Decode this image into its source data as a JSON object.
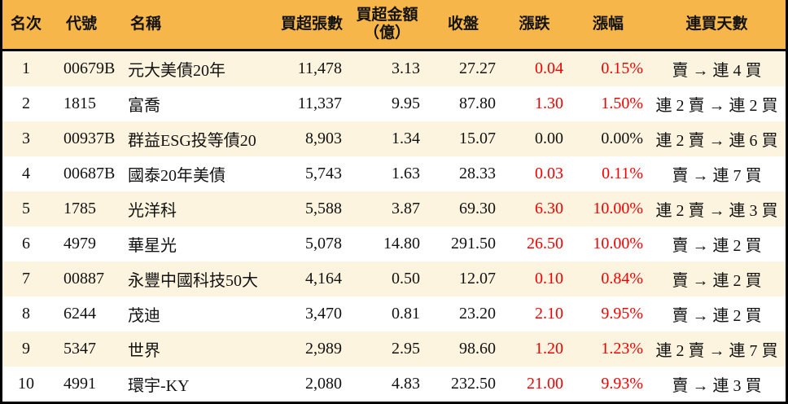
{
  "chart_data": {
    "type": "table",
    "header": {
      "rank": "名次",
      "code": "代號",
      "name": "名稱",
      "volume": "買超張數",
      "amount_line1": "買超金額",
      "amount_line2": "（億）",
      "close": "收盤",
      "change": "漲跌",
      "pct": "漲幅",
      "days": "連買天數"
    },
    "rows": [
      {
        "rank": "1",
        "code": "00679B",
        "name": "元大美債20年",
        "volume": "11,478",
        "amount": "3.13",
        "close": "27.27",
        "change": "0.04",
        "pct": "0.15%",
        "days": "賣 → 連 4 買",
        "direction": "up"
      },
      {
        "rank": "2",
        "code": "1815",
        "name": "富喬",
        "volume": "11,337",
        "amount": "9.95",
        "close": "87.80",
        "change": "1.30",
        "pct": "1.50%",
        "days": "連 2 賣 → 連 2 買",
        "direction": "up"
      },
      {
        "rank": "3",
        "code": "00937B",
        "name": "群益ESG投等債20",
        "volume": "8,903",
        "amount": "1.34",
        "close": "15.07",
        "change": "0.00",
        "pct": "0.00%",
        "days": "連 2 賣 → 連 6 買",
        "direction": "flat"
      },
      {
        "rank": "4",
        "code": "00687B",
        "name": "國泰20年美債",
        "volume": "5,743",
        "amount": "1.63",
        "close": "28.33",
        "change": "0.03",
        "pct": "0.11%",
        "days": "賣 → 連 7 買",
        "direction": "up"
      },
      {
        "rank": "5",
        "code": "1785",
        "name": "光洋科",
        "volume": "5,588",
        "amount": "3.87",
        "close": "69.30",
        "change": "6.30",
        "pct": "10.00%",
        "days": "連 2 賣 → 連 3 買",
        "direction": "up"
      },
      {
        "rank": "6",
        "code": "4979",
        "name": "華星光",
        "volume": "5,078",
        "amount": "14.80",
        "close": "291.50",
        "change": "26.50",
        "pct": "10.00%",
        "days": "賣 → 連 2 買",
        "direction": "up"
      },
      {
        "rank": "7",
        "code": "00887",
        "name": "永豐中國科技50大",
        "volume": "4,164",
        "amount": "0.50",
        "close": "12.07",
        "change": "0.10",
        "pct": "0.84%",
        "days": "賣 → 連 2 買",
        "direction": "up"
      },
      {
        "rank": "8",
        "code": "6244",
        "name": "茂迪",
        "volume": "3,470",
        "amount": "0.81",
        "close": "23.20",
        "change": "2.10",
        "pct": "9.95%",
        "days": "賣 → 連 2 買",
        "direction": "up"
      },
      {
        "rank": "9",
        "code": "5347",
        "name": "世界",
        "volume": "2,989",
        "amount": "2.95",
        "close": "98.60",
        "change": "1.20",
        "pct": "1.23%",
        "days": "連 2 賣 → 連 7 買",
        "direction": "up"
      },
      {
        "rank": "10",
        "code": "4991",
        "name": "環宇-KY",
        "volume": "2,080",
        "amount": "4.83",
        "close": "232.50",
        "change": "21.00",
        "pct": "9.93%",
        "days": "賣 → 連 3 買",
        "direction": "up"
      }
    ]
  },
  "colors": {
    "header_bg": "#F7B64A",
    "stripe_bg": "#FDF4DF",
    "row_bg": "#FFFFFF",
    "border": "#000000",
    "text": "#121212",
    "up": "#F00000"
  }
}
